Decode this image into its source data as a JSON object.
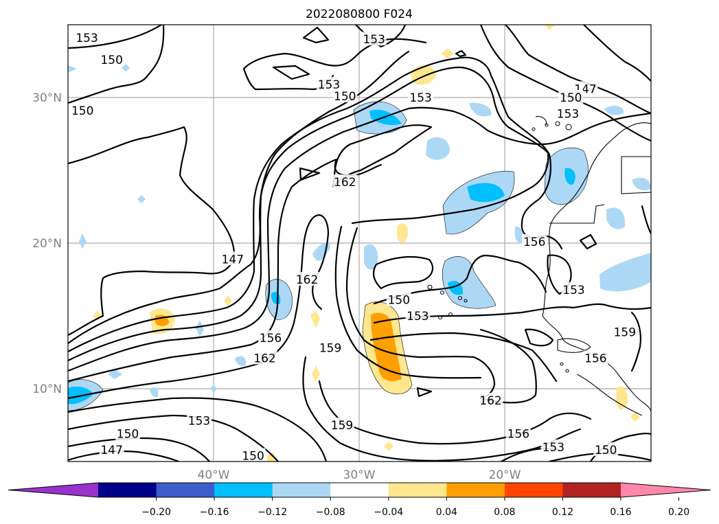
{
  "chart_data": {
    "type": "map-contour",
    "title": "2022080800 F024",
    "x_ticks": [
      "40°W",
      "30°W",
      "20°W"
    ],
    "y_ticks": [
      "30°N",
      "20°N",
      "10°N"
    ],
    "grid": true,
    "extent": {
      "lon": [
        -50,
        -10
      ],
      "lat": [
        5,
        35
      ]
    },
    "contour_levels": [
      147,
      150,
      153,
      156,
      159,
      162
    ],
    "contour_labels": [
      {
        "text": "153",
        "lon": -48.7,
        "lat": 34.1
      },
      {
        "text": "150",
        "lon": -47.0,
        "lat": 32.6
      },
      {
        "text": "150",
        "lon": -49.0,
        "lat": 29.1
      },
      {
        "text": "153",
        "lon": -29.0,
        "lat": 34.0
      },
      {
        "text": "153",
        "lon": -32.1,
        "lat": 30.9
      },
      {
        "text": "150",
        "lon": -31.0,
        "lat": 30.1
      },
      {
        "text": "153",
        "lon": -25.8,
        "lat": 30.0
      },
      {
        "text": "147",
        "lon": -14.5,
        "lat": 30.6
      },
      {
        "text": "150",
        "lon": -15.5,
        "lat": 30.0
      },
      {
        "text": "153",
        "lon": -15.7,
        "lat": 28.9
      },
      {
        "text": "162",
        "lon": -31.0,
        "lat": 24.2
      },
      {
        "text": "147",
        "lon": -38.7,
        "lat": 18.9
      },
      {
        "text": "162",
        "lon": -33.6,
        "lat": 17.5
      },
      {
        "text": "156",
        "lon": -18.0,
        "lat": 20.1
      },
      {
        "text": "153",
        "lon": -15.3,
        "lat": 16.8
      },
      {
        "text": "150",
        "lon": -27.3,
        "lat": 16.1
      },
      {
        "text": "153",
        "lon": -26.0,
        "lat": 15.0
      },
      {
        "text": "156",
        "lon": -36.1,
        "lat": 13.5
      },
      {
        "text": "159",
        "lon": -32.0,
        "lat": 12.8
      },
      {
        "text": "162",
        "lon": -36.5,
        "lat": 12.1
      },
      {
        "text": "159",
        "lon": -11.8,
        "lat": 13.9
      },
      {
        "text": "156",
        "lon": -13.8,
        "lat": 12.1
      },
      {
        "text": "162",
        "lon": -21.0,
        "lat": 9.2
      },
      {
        "text": "153",
        "lon": -41.0,
        "lat": 7.8
      },
      {
        "text": "159",
        "lon": -31.2,
        "lat": 7.5
      },
      {
        "text": "150",
        "lon": -45.9,
        "lat": 6.9
      },
      {
        "text": "156",
        "lon": -19.1,
        "lat": 6.9
      },
      {
        "text": "153",
        "lon": -16.7,
        "lat": 6.0
      },
      {
        "text": "147",
        "lon": -47.0,
        "lat": 5.8
      },
      {
        "text": "150",
        "lon": -37.3,
        "lat": 5.4
      },
      {
        "text": "150",
        "lon": -13.1,
        "lat": 5.8
      }
    ],
    "colorbar": {
      "ticks": [
        "−0.20",
        "−0.16",
        "−0.12",
        "−0.08",
        "−0.04",
        "0.04",
        "0.08",
        "0.12",
        "0.16",
        "0.20"
      ],
      "bounds": [
        -0.2,
        -0.16,
        -0.12,
        -0.08,
        -0.04,
        0.04,
        0.08,
        0.12,
        0.16,
        0.2
      ],
      "colors": [
        "#9932cc",
        "#00008b",
        "#3a5fcd",
        "#00bfff",
        "#add8f5",
        "#ffffff",
        "#ffe78f",
        "#ff9f00",
        "#ff4500",
        "#b22222",
        "#ff88aa"
      ],
      "extend": "both"
    }
  }
}
